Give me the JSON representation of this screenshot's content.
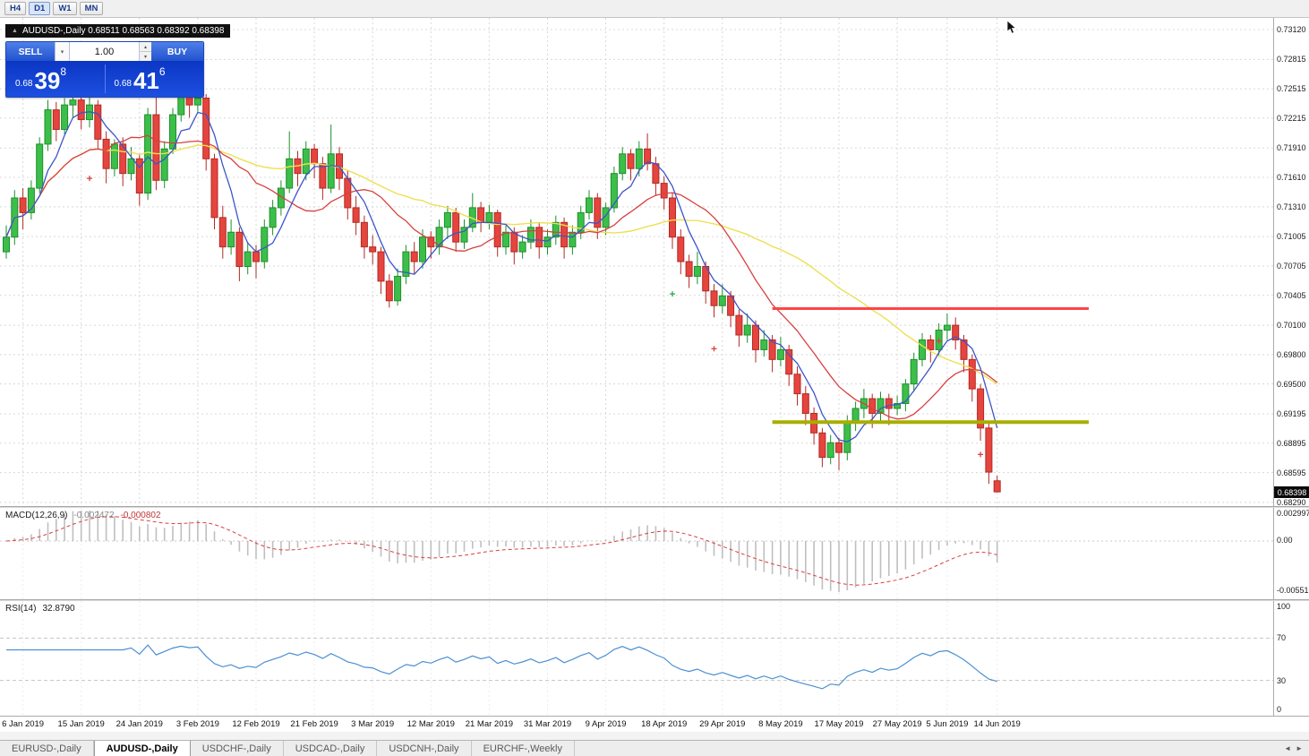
{
  "toolbar": {
    "period_buttons": [
      "H4",
      "D1",
      "W1",
      "MN"
    ],
    "active_period": "D1"
  },
  "chart_header": {
    "marker": "▲",
    "title": "AUDUSD-,Daily 0.68511 0.68563 0.68392 0.68398"
  },
  "one_click_trading": {
    "sell_label": "SELL",
    "buy_label": "BUY",
    "volume": "1.00",
    "sell_price_prefix": "0.68",
    "sell_price_big": "39",
    "sell_price_sup": "8",
    "buy_price_prefix": "0.68",
    "buy_price_big": "41",
    "buy_price_sup": "6",
    "combo_arrow": "▾",
    "spin_up": "▴",
    "spin_down": "▾"
  },
  "price_scale": {
    "labels": [
      "0.73120",
      "0.72815",
      "0.72515",
      "0.72215",
      "0.71910",
      "0.71610",
      "0.71310",
      "0.71005",
      "0.70705",
      "0.70405",
      "0.70100",
      "0.69800",
      "0.69500",
      "0.69195",
      "0.68895",
      "0.68595",
      "0.68290"
    ],
    "current_price": "0.68398"
  },
  "time_scale": {
    "labels": [
      "6 Jan 2019",
      "15 Jan 2019",
      "24 Jan 2019",
      "3 Feb 2019",
      "12 Feb 2019",
      "21 Feb 2019",
      "3 Mar 2019",
      "12 Mar 2019",
      "21 Mar 2019",
      "31 Mar 2019",
      "9 Apr 2019",
      "18 Apr 2019",
      "29 Apr 2019",
      "8 May 2019",
      "17 May 2019",
      "27 May 2019",
      "5 Jun 2019",
      "14 Jun 2019"
    ],
    "bar_index": [
      2,
      9,
      16,
      23,
      30,
      37,
      44,
      51,
      58,
      65,
      72,
      79,
      86,
      93,
      100,
      107,
      113,
      119
    ]
  },
  "candles": [
    [
      0.7085,
      0.7112,
      0.7078,
      0.71
    ],
    [
      0.71,
      0.7148,
      0.7092,
      0.714
    ],
    [
      0.714,
      0.715,
      0.7108,
      0.7125
    ],
    [
      0.7125,
      0.7158,
      0.7118,
      0.715
    ],
    [
      0.715,
      0.7202,
      0.7145,
      0.7195
    ],
    [
      0.7195,
      0.724,
      0.7188,
      0.723
    ],
    [
      0.723,
      0.7238,
      0.7198,
      0.721
    ],
    [
      0.721,
      0.7242,
      0.7205,
      0.7235
    ],
    [
      0.7235,
      0.7252,
      0.7222,
      0.724
    ],
    [
      0.724,
      0.7248,
      0.721,
      0.722
    ],
    [
      0.722,
      0.7245,
      0.7212,
      0.7235
    ],
    [
      0.7235,
      0.724,
      0.719,
      0.72
    ],
    [
      0.72,
      0.7208,
      0.7155,
      0.717
    ],
    [
      0.717,
      0.72,
      0.7162,
      0.7195
    ],
    [
      0.7195,
      0.7202,
      0.7152,
      0.7165
    ],
    [
      0.7165,
      0.7192,
      0.7158,
      0.718
    ],
    [
      0.718,
      0.7185,
      0.7132,
      0.7145
    ],
    [
      0.7145,
      0.7232,
      0.7138,
      0.7225
    ],
    [
      0.7225,
      0.7245,
      0.7148,
      0.7158
    ],
    [
      0.7158,
      0.7198,
      0.715,
      0.719
    ],
    [
      0.719,
      0.7232,
      0.7185,
      0.7225
    ],
    [
      0.7225,
      0.7252,
      0.7218,
      0.7245
    ],
    [
      0.7245,
      0.725,
      0.7222,
      0.7235
    ],
    [
      0.7235,
      0.7255,
      0.7228,
      0.7242
    ],
    [
      0.7242,
      0.7246,
      0.7168,
      0.718
    ],
    [
      0.718,
      0.7185,
      0.7108,
      0.712
    ],
    [
      0.712,
      0.7132,
      0.7078,
      0.709
    ],
    [
      0.709,
      0.7118,
      0.7082,
      0.7105
    ],
    [
      0.7105,
      0.711,
      0.7055,
      0.707
    ],
    [
      0.707,
      0.7095,
      0.7062,
      0.7085
    ],
    [
      0.7085,
      0.7092,
      0.7058,
      0.7075
    ],
    [
      0.7075,
      0.7118,
      0.7068,
      0.711
    ],
    [
      0.711,
      0.7138,
      0.7102,
      0.713
    ],
    [
      0.713,
      0.7158,
      0.7122,
      0.715
    ],
    [
      0.715,
      0.7208,
      0.7145,
      0.718
    ],
    [
      0.718,
      0.7188,
      0.7152,
      0.7165
    ],
    [
      0.7165,
      0.7198,
      0.7158,
      0.719
    ],
    [
      0.719,
      0.7195,
      0.716,
      0.7175
    ],
    [
      0.7175,
      0.7182,
      0.7138,
      0.715
    ],
    [
      0.715,
      0.7215,
      0.7145,
      0.7185
    ],
    [
      0.7185,
      0.7192,
      0.7148,
      0.716
    ],
    [
      0.716,
      0.7168,
      0.7118,
      0.713
    ],
    [
      0.713,
      0.7142,
      0.7102,
      0.7115
    ],
    [
      0.7115,
      0.7122,
      0.7078,
      0.709
    ],
    [
      0.709,
      0.7102,
      0.7072,
      0.7085
    ],
    [
      0.7085,
      0.709,
      0.7042,
      0.7055
    ],
    [
      0.7055,
      0.7062,
      0.7028,
      0.7035
    ],
    [
      0.7035,
      0.7068,
      0.703,
      0.706
    ],
    [
      0.706,
      0.7092,
      0.7052,
      0.7085
    ],
    [
      0.7085,
      0.7095,
      0.7062,
      0.7075
    ],
    [
      0.7075,
      0.7108,
      0.7068,
      0.71
    ],
    [
      0.71,
      0.7106,
      0.7078,
      0.709
    ],
    [
      0.709,
      0.7118,
      0.7082,
      0.711
    ],
    [
      0.711,
      0.7132,
      0.7098,
      0.7125
    ],
    [
      0.7125,
      0.713,
      0.7085,
      0.7095
    ],
    [
      0.7095,
      0.7118,
      0.7088,
      0.711
    ],
    [
      0.711,
      0.7145,
      0.7105,
      0.713
    ],
    [
      0.713,
      0.7136,
      0.7105,
      0.7115
    ],
    [
      0.7115,
      0.7133,
      0.7108,
      0.7125
    ],
    [
      0.7125,
      0.7128,
      0.708,
      0.709
    ],
    [
      0.709,
      0.7112,
      0.7082,
      0.7105
    ],
    [
      0.7105,
      0.711,
      0.7072,
      0.7085
    ],
    [
      0.7085,
      0.7102,
      0.7078,
      0.7095
    ],
    [
      0.7095,
      0.7118,
      0.7088,
      0.711
    ],
    [
      0.711,
      0.7115,
      0.7078,
      0.709
    ],
    [
      0.709,
      0.7108,
      0.7082,
      0.71
    ],
    [
      0.71,
      0.7122,
      0.7092,
      0.7115
    ],
    [
      0.7115,
      0.712,
      0.7078,
      0.709
    ],
    [
      0.709,
      0.7112,
      0.7082,
      0.7105
    ],
    [
      0.7105,
      0.7132,
      0.7098,
      0.7125
    ],
    [
      0.7125,
      0.7148,
      0.7118,
      0.714
    ],
    [
      0.714,
      0.7145,
      0.7098,
      0.711
    ],
    [
      0.711,
      0.7135,
      0.7102,
      0.713
    ],
    [
      0.713,
      0.7172,
      0.7125,
      0.7165
    ],
    [
      0.7165,
      0.7192,
      0.7158,
      0.7185
    ],
    [
      0.7185,
      0.719,
      0.7158,
      0.717
    ],
    [
      0.717,
      0.7198,
      0.7162,
      0.719
    ],
    [
      0.719,
      0.7206,
      0.7168,
      0.7175
    ],
    [
      0.7175,
      0.7182,
      0.7142,
      0.7155
    ],
    [
      0.7155,
      0.7162,
      0.7128,
      0.714
    ],
    [
      0.714,
      0.7145,
      0.7088,
      0.71
    ],
    [
      0.71,
      0.7108,
      0.7062,
      0.7075
    ],
    [
      0.7075,
      0.7082,
      0.7048,
      0.706
    ],
    [
      0.706,
      0.7085,
      0.7052,
      0.707
    ],
    [
      0.707,
      0.7075,
      0.7032,
      0.7045
    ],
    [
      0.7045,
      0.7052,
      0.7018,
      0.703
    ],
    [
      0.703,
      0.7052,
      0.7022,
      0.704
    ],
    [
      0.704,
      0.7045,
      0.7008,
      0.702
    ],
    [
      0.702,
      0.7026,
      0.6988,
      0.7
    ],
    [
      0.7,
      0.7022,
      0.6992,
      0.701
    ],
    [
      0.701,
      0.7015,
      0.6972,
      0.6985
    ],
    [
      0.6985,
      0.7005,
      0.6978,
      0.6995
    ],
    [
      0.6995,
      0.7,
      0.6962,
      0.6975
    ],
    [
      0.6975,
      0.6998,
      0.6968,
      0.6985
    ],
    [
      0.6985,
      0.699,
      0.6948,
      0.696
    ],
    [
      0.696,
      0.6968,
      0.6928,
      0.694
    ],
    [
      0.694,
      0.6948,
      0.6908,
      0.692
    ],
    [
      0.692,
      0.6926,
      0.6888,
      0.69
    ],
    [
      0.69,
      0.6905,
      0.6865,
      0.6875
    ],
    [
      0.6875,
      0.6898,
      0.6868,
      0.689
    ],
    [
      0.689,
      0.6895,
      0.6862,
      0.688
    ],
    [
      0.688,
      0.6918,
      0.6872,
      0.691
    ],
    [
      0.691,
      0.6932,
      0.6902,
      0.6925
    ],
    [
      0.6925,
      0.6945,
      0.6915,
      0.6935
    ],
    [
      0.6935,
      0.694,
      0.6905,
      0.692
    ],
    [
      0.692,
      0.6942,
      0.6912,
      0.6935
    ],
    [
      0.6935,
      0.694,
      0.6908,
      0.6925
    ],
    [
      0.6925,
      0.6938,
      0.6918,
      0.693
    ],
    [
      0.693,
      0.6955,
      0.6922,
      0.695
    ],
    [
      0.695,
      0.6982,
      0.6942,
      0.6975
    ],
    [
      0.6975,
      0.7002,
      0.6968,
      0.6995
    ],
    [
      0.6995,
      0.7,
      0.6972,
      0.6985
    ],
    [
      0.6985,
      0.7012,
      0.6978,
      0.7005
    ],
    [
      0.7005,
      0.7022,
      0.6995,
      0.701
    ],
    [
      0.701,
      0.7018,
      0.6985,
      0.6995
    ],
    [
      0.6995,
      0.7,
      0.6962,
      0.6975
    ],
    [
      0.6975,
      0.698,
      0.6932,
      0.6945
    ],
    [
      0.6945,
      0.695,
      0.6892,
      0.6905
    ],
    [
      0.6905,
      0.691,
      0.6848,
      0.686
    ],
    [
      0.68511,
      0.68563,
      0.68392,
      0.68398
    ]
  ],
  "overlays": {
    "resistance": {
      "price": 0.7027,
      "from_bar": 92,
      "to_bar": 130
    },
    "support": {
      "price": 0.6911,
      "from_bar": 92,
      "to_bar": 130
    }
  },
  "markers": [
    {
      "bar": 10,
      "price": 0.716,
      "color": "#D94040"
    },
    {
      "bar": 80,
      "price": 0.7042,
      "color": "#2EA84E"
    },
    {
      "bar": 85,
      "price": 0.6986,
      "color": "#D94040"
    },
    {
      "bar": 112,
      "price": 0.6994,
      "color": "#D94040"
    },
    {
      "bar": 117,
      "price": 0.6878,
      "color": "#D94040"
    }
  ],
  "macd": {
    "name": "MACD(12,26,9)",
    "value_main": "-0.002472",
    "value_signal": "-0.000802",
    "scale_top": "0.002997",
    "scale_zero": "0.00",
    "scale_bottom": "-0.00551"
  },
  "rsi": {
    "name": "RSI(14)",
    "value": "32.8790",
    "scale": [
      "100",
      "70",
      "30",
      "0"
    ],
    "levels": [
      70,
      30
    ]
  },
  "tabs": {
    "items": [
      {
        "label": "EURUSD-,Daily",
        "active": false
      },
      {
        "label": "AUDUSD-,Daily",
        "active": true
      },
      {
        "label": "USDCHF-,Daily",
        "active": false
      },
      {
        "label": "USDCAD-,Daily",
        "active": false
      },
      {
        "label": "USDCNH-,Daily",
        "active": false
      },
      {
        "label": "EURCHF-,Weekly",
        "active": false
      }
    ],
    "scroll_left": "◄",
    "scroll_right": "►"
  },
  "colors": {
    "candle_up": "#3CBF4A",
    "candle_up_border": "#1E8F2A",
    "candle_down": "#E5453E",
    "candle_down_border": "#B22A24",
    "ma_fast": "#3C55C8",
    "ma_mid": "#D84040",
    "ma_slow": "#EDE052",
    "resistance": "#FF4545",
    "support": "#A8AE00",
    "macd_hist": "#BFBFBF",
    "macd_signal": "#D94040",
    "rsi_line": "#4A90D2",
    "grid": "#D8D8D8"
  }
}
